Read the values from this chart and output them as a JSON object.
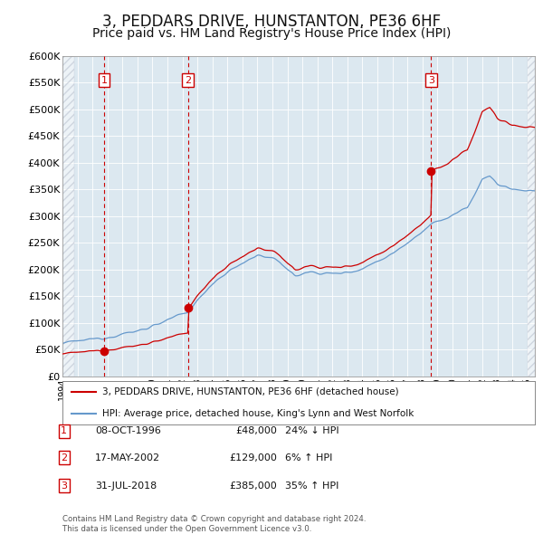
{
  "title": "3, PEDDARS DRIVE, HUNSTANTON, PE36 6HF",
  "subtitle": "Price paid vs. HM Land Registry's House Price Index (HPI)",
  "legend_line1": "3, PEDDARS DRIVE, HUNSTANTON, PE36 6HF (detached house)",
  "legend_line2": "HPI: Average price, detached house, King's Lynn and West Norfolk",
  "table_entries": [
    {
      "num": 1,
      "date": "08-OCT-1996",
      "price": "£48,000",
      "hpi": "24% ↓ HPI"
    },
    {
      "num": 2,
      "date": "17-MAY-2002",
      "price": "£129,000",
      "hpi": "6% ↑ HPI"
    },
    {
      "num": 3,
      "date": "31-JUL-2018",
      "price": "£385,000",
      "hpi": "35% ↑ HPI"
    }
  ],
  "footer": "Contains HM Land Registry data © Crown copyright and database right 2024.\nThis data is licensed under the Open Government Licence v3.0.",
  "sale_prices": [
    48000,
    129000,
    385000
  ],
  "hpi_line_color": "#6699cc",
  "price_line_color": "#cc0000",
  "dashed_line_color": "#cc0000",
  "plot_bg_color": "#dce8f0",
  "outer_bg_color": "#ffffff",
  "ylim": [
    0,
    600000
  ],
  "yticks": [
    0,
    50000,
    100000,
    150000,
    200000,
    250000,
    300000,
    350000,
    400000,
    450000,
    500000,
    550000,
    600000
  ],
  "xstart": 1994.0,
  "xend": 2025.5,
  "title_fontsize": 12,
  "subtitle_fontsize": 10,
  "axis_fontsize": 8
}
